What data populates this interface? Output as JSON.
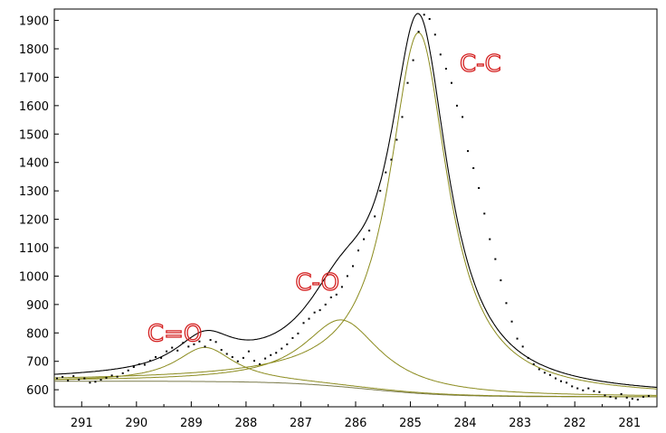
{
  "chart_data": {
    "type": "line",
    "title": "",
    "xlabel": "",
    "ylabel": "",
    "x_reversed": true,
    "xlim": [
      291.5,
      280.5
    ],
    "ylim": [
      540,
      1940
    ],
    "grid": false,
    "legend": "none",
    "x_ticks": [
      291,
      290,
      289,
      288,
      287,
      286,
      285,
      284,
      283,
      282,
      281
    ],
    "y_ticks": [
      600,
      700,
      800,
      900,
      1000,
      1100,
      1200,
      1300,
      1400,
      1500,
      1600,
      1700,
      1800,
      1900
    ],
    "colors": {
      "component": "#8b8b1e",
      "envelope": "#000000",
      "background_line": "#7a7a4a",
      "data_points": "#000000",
      "annotation": "#d42020"
    },
    "components": [
      {
        "label": "C-C",
        "center": 284.85,
        "height": 1270,
        "fwhm": 1.3
      },
      {
        "label": "C-O",
        "center": 286.25,
        "height": 235,
        "fwhm": 1.7
      },
      {
        "label": "C=O",
        "center": 288.75,
        "height": 120,
        "fwhm": 1.3
      }
    ],
    "background": {
      "high_be_level": 630,
      "low_be_level": 575,
      "step_center": 285.8,
      "step_width": 0.75
    },
    "points": {
      "x": [
        291.45,
        291.35,
        291.25,
        291.15,
        291.05,
        290.95,
        290.85,
        290.75,
        290.65,
        290.55,
        290.45,
        290.35,
        290.25,
        290.15,
        290.05,
        289.95,
        289.85,
        289.75,
        289.65,
        289.55,
        289.45,
        289.35,
        289.25,
        289.15,
        289.05,
        288.95,
        288.85,
        288.75,
        288.65,
        288.55,
        288.45,
        288.35,
        288.25,
        288.15,
        288.05,
        287.95,
        287.85,
        287.75,
        287.65,
        287.55,
        287.45,
        287.35,
        287.25,
        287.15,
        287.05,
        286.95,
        286.85,
        286.75,
        286.65,
        286.55,
        286.45,
        286.35,
        286.25,
        286.15,
        286.05,
        285.95,
        285.85,
        285.75,
        285.65,
        285.55,
        285.45,
        285.35,
        285.25,
        285.15,
        285.05,
        284.95,
        284.85,
        284.75,
        284.65,
        284.55,
        284.45,
        284.35,
        284.25,
        284.15,
        284.05,
        283.95,
        283.85,
        283.75,
        283.65,
        283.55,
        283.45,
        283.35,
        283.25,
        283.15,
        283.05,
        282.95,
        282.85,
        282.75,
        282.65,
        282.55,
        282.45,
        282.35,
        282.25,
        282.15,
        282.05,
        281.95,
        281.85,
        281.75,
        281.65,
        281.55,
        281.45,
        281.35,
        281.25,
        281.15,
        281.05,
        280.95,
        280.85,
        280.75,
        280.65
      ],
      "y": [
        640,
        645,
        632,
        648,
        636,
        640,
        625,
        628,
        635,
        642,
        650,
        646,
        658,
        668,
        680,
        690,
        688,
        702,
        715,
        712,
        735,
        748,
        738,
        765,
        752,
        760,
        770,
        752,
        775,
        768,
        740,
        726,
        715,
        700,
        712,
        735,
        702,
        690,
        710,
        722,
        730,
        745,
        760,
        782,
        798,
        835,
        850,
        872,
        880,
        900,
        925,
        935,
        962,
        1000,
        1035,
        1090,
        1130,
        1160,
        1210,
        1300,
        1365,
        1410,
        1480,
        1560,
        1680,
        1760,
        1860,
        1920,
        1905,
        1850,
        1780,
        1730,
        1680,
        1600,
        1560,
        1440,
        1380,
        1310,
        1220,
        1130,
        1060,
        985,
        905,
        840,
        780,
        752,
        712,
        690,
        672,
        660,
        652,
        640,
        630,
        625,
        612,
        605,
        598,
        605,
        595,
        592,
        580,
        575,
        570,
        585,
        572,
        568,
        565,
        575,
        578
      ]
    },
    "annotations": [
      "C=O",
      "C-O",
      "C-C"
    ]
  }
}
